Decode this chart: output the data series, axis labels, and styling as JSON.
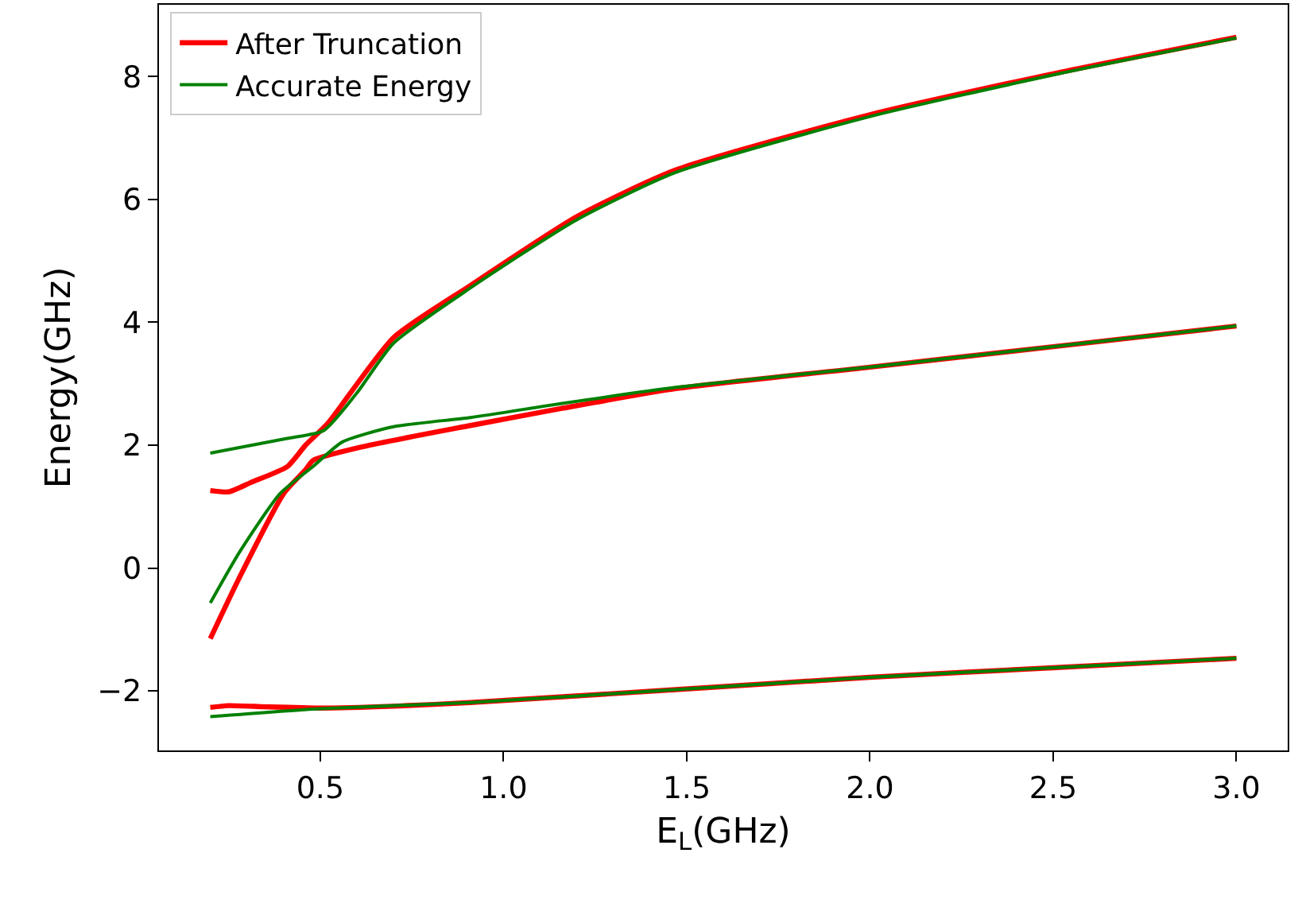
{
  "chart_data": {
    "type": "line",
    "xlabel": "E$_{L}$(GHz)",
    "ylabel": "Energy(GHz)",
    "xlim": [
      0.06,
      3.14
    ],
    "xticks": [
      0.5,
      {
        "value": 1,
        "label": "1.0"
      },
      1.5,
      {
        "value": 2,
        "label": "2.0"
      },
      2.5,
      {
        "value": 3,
        "label": "3.0"
      }
    ],
    "ylim": [
      -2.97,
      9.17
    ],
    "yticks": [
      {
        "value": -2,
        "label": "−2"
      },
      0,
      2,
      4,
      6,
      8
    ],
    "grid": false,
    "legend": "top left",
    "marker": "none",
    "line_style": "solid",
    "series": [
      {
        "name": "After Truncation",
        "color": "#ff0000",
        "x": [
          0.2,
          0.25,
          0.35,
          0.5,
          0.7,
          0.91,
          1.47,
          2.0,
          2.51,
          3.0
        ],
        "values": [
          -2.27,
          -2.24,
          -2.26,
          -2.28,
          -2.25,
          -2.19,
          -1.98,
          -1.78,
          -1.62,
          -1.47
        ]
      },
      {
        "color": "#ff0000",
        "x": [
          0.2,
          0.28,
          0.4,
          0.46,
          0.48,
          0.62,
          0.91,
          1.16,
          1.47,
          2.0,
          2.51,
          3.0
        ],
        "values": [
          -1.15,
          -0.15,
          1.21,
          1.6,
          1.75,
          1.98,
          2.32,
          2.6,
          2.92,
          3.27,
          3.61,
          3.94
        ]
      },
      {
        "color": "#ff0000",
        "x": [
          0.2,
          0.25,
          0.31,
          0.41,
          0.46,
          0.52,
          0.7,
          0.91,
          1.2,
          1.47,
          2.0,
          2.51,
          3.0
        ],
        "values": [
          1.26,
          1.24,
          1.39,
          1.65,
          2.0,
          2.35,
          3.75,
          4.6,
          5.72,
          6.48,
          7.38,
          8.06,
          8.64
        ]
      },
      {
        "name": "Accurate Energy",
        "color": "#008000",
        "x": [
          0.2,
          0.5,
          0.91,
          1.47,
          2.0,
          2.51,
          3.0
        ],
        "values": [
          -2.42,
          -2.29,
          -2.19,
          -1.98,
          -1.78,
          -1.62,
          -1.47
        ]
      },
      {
        "color": "#008000",
        "x": [
          0.2,
          0.28,
          0.39,
          0.48,
          0.56,
          0.7,
          0.91,
          1.16,
          1.47,
          2.0,
          2.51,
          3.0
        ],
        "values": [
          -0.57,
          0.26,
          1.21,
          1.65,
          2.05,
          2.3,
          2.45,
          2.68,
          2.94,
          3.27,
          3.61,
          3.94
        ]
      },
      {
        "color": "#008000",
        "x": [
          0.2,
          0.41,
          0.51,
          0.6,
          0.7,
          0.91,
          1.2,
          1.47,
          2.0,
          2.51,
          3.0
        ],
        "values": [
          1.87,
          2.11,
          2.24,
          2.85,
          3.66,
          4.56,
          5.67,
          6.44,
          7.35,
          8.04,
          8.63
        ]
      }
    ]
  }
}
